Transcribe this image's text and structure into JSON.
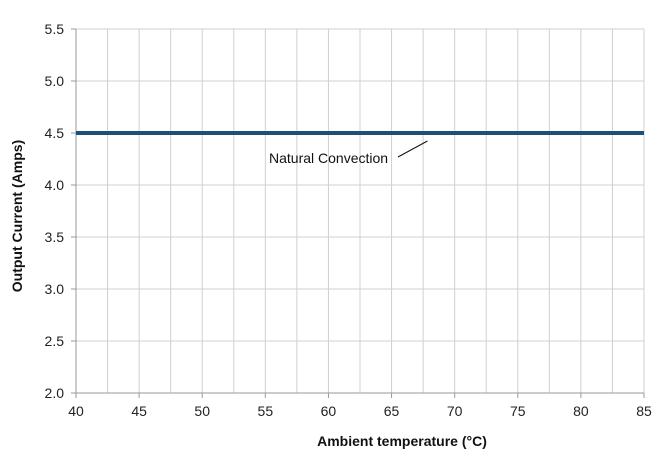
{
  "chart_data": {
    "type": "line",
    "xlabel": "Ambient temperature (°C)",
    "ylabel": "Output Current (Amps)",
    "xlim": [
      40,
      85
    ],
    "ylim": [
      2.0,
      5.5
    ],
    "x_ticks": [
      "40",
      "45",
      "50",
      "55",
      "60",
      "65",
      "70",
      "75",
      "80",
      "85"
    ],
    "y_ticks": [
      "2.0",
      "2.5",
      "3.0",
      "3.5",
      "4.0",
      "4.5",
      "5.0",
      "5.5"
    ],
    "grid": true,
    "series": [
      {
        "name": "Natural Convection",
        "color": "#1f4e79",
        "x": [
          40,
          85
        ],
        "y": [
          4.5,
          4.5
        ]
      }
    ],
    "annotations": [
      {
        "text": "Natural Convection",
        "points_to_x": 68,
        "points_to_y": 4.5
      }
    ]
  }
}
